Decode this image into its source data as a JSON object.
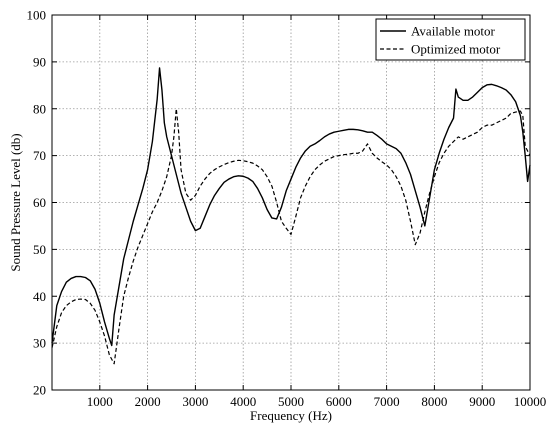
{
  "chart_data": {
    "type": "line",
    "title": "",
    "xlabel": "Frequency (Hz)",
    "ylabel": "Sound Pressure Level (db)",
    "xlim": [
      0,
      10000
    ],
    "ylim": [
      20,
      100
    ],
    "xticks": [
      1000,
      2000,
      3000,
      4000,
      5000,
      6000,
      7000,
      8000,
      9000,
      10000
    ],
    "yticks": [
      20,
      30,
      40,
      50,
      60,
      70,
      80,
      90,
      100
    ],
    "grid": true,
    "legend_position": "top-right",
    "series": [
      {
        "name": "Available motor",
        "style": "solid",
        "color": "#000000",
        "points": [
          [
            0,
            30
          ],
          [
            100,
            38
          ],
          [
            200,
            41
          ],
          [
            300,
            43
          ],
          [
            400,
            43.8
          ],
          [
            500,
            44.2
          ],
          [
            600,
            44.2
          ],
          [
            700,
            44
          ],
          [
            800,
            43.3
          ],
          [
            900,
            41.5
          ],
          [
            1000,
            38.5
          ],
          [
            1100,
            34.5
          ],
          [
            1200,
            31
          ],
          [
            1250,
            29.5
          ],
          [
            1300,
            36
          ],
          [
            1400,
            42
          ],
          [
            1500,
            48
          ],
          [
            1600,
            52
          ],
          [
            1700,
            56
          ],
          [
            1800,
            59.5
          ],
          [
            1900,
            63
          ],
          [
            2000,
            67
          ],
          [
            2100,
            73
          ],
          [
            2200,
            82
          ],
          [
            2250,
            88.7
          ],
          [
            2300,
            84
          ],
          [
            2350,
            77
          ],
          [
            2400,
            74
          ],
          [
            2500,
            70
          ],
          [
            2600,
            66
          ],
          [
            2700,
            62
          ],
          [
            2800,
            59
          ],
          [
            2900,
            56
          ],
          [
            3000,
            54
          ],
          [
            3100,
            54.5
          ],
          [
            3200,
            57
          ],
          [
            3300,
            59.5
          ],
          [
            3400,
            61.5
          ],
          [
            3500,
            63
          ],
          [
            3600,
            64.3
          ],
          [
            3700,
            65
          ],
          [
            3800,
            65.5
          ],
          [
            3900,
            65.7
          ],
          [
            4000,
            65.6
          ],
          [
            4100,
            65.2
          ],
          [
            4200,
            64.5
          ],
          [
            4300,
            63
          ],
          [
            4400,
            61
          ],
          [
            4500,
            58.5
          ],
          [
            4600,
            56.7
          ],
          [
            4700,
            56.5
          ],
          [
            4800,
            59
          ],
          [
            4900,
            62.5
          ],
          [
            5000,
            65
          ],
          [
            5100,
            67.5
          ],
          [
            5200,
            69.5
          ],
          [
            5300,
            71
          ],
          [
            5400,
            72
          ],
          [
            5500,
            72.5
          ],
          [
            5600,
            73.2
          ],
          [
            5700,
            74
          ],
          [
            5800,
            74.6
          ],
          [
            5900,
            75
          ],
          [
            6000,
            75.2
          ],
          [
            6100,
            75.4
          ],
          [
            6200,
            75.6
          ],
          [
            6300,
            75.6
          ],
          [
            6400,
            75.5
          ],
          [
            6500,
            75.3
          ],
          [
            6600,
            75
          ],
          [
            6700,
            75
          ],
          [
            6800,
            74.3
          ],
          [
            6900,
            73.5
          ],
          [
            7000,
            72.5
          ],
          [
            7100,
            72
          ],
          [
            7200,
            71.5
          ],
          [
            7300,
            70.5
          ],
          [
            7400,
            68.5
          ],
          [
            7500,
            66
          ],
          [
            7600,
            62.5
          ],
          [
            7700,
            59
          ],
          [
            7800,
            55
          ],
          [
            7900,
            61
          ],
          [
            8000,
            67
          ],
          [
            8100,
            70.5
          ],
          [
            8200,
            73.5
          ],
          [
            8300,
            76
          ],
          [
            8400,
            78
          ],
          [
            8450,
            84.2
          ],
          [
            8500,
            82.5
          ],
          [
            8600,
            81.8
          ],
          [
            8700,
            81.8
          ],
          [
            8800,
            82.5
          ],
          [
            8900,
            83.5
          ],
          [
            9000,
            84.5
          ],
          [
            9100,
            85.1
          ],
          [
            9200,
            85.2
          ],
          [
            9300,
            84.9
          ],
          [
            9400,
            84.5
          ],
          [
            9500,
            84
          ],
          [
            9600,
            83
          ],
          [
            9700,
            81.5
          ],
          [
            9800,
            78.5
          ],
          [
            9850,
            75
          ],
          [
            9900,
            70
          ],
          [
            9950,
            64.5
          ],
          [
            10000,
            68
          ]
        ]
      },
      {
        "name": "Optimized motor",
        "style": "dashed",
        "color": "#000000",
        "points": [
          [
            0,
            29
          ],
          [
            100,
            33.5
          ],
          [
            200,
            36.5
          ],
          [
            300,
            38
          ],
          [
            400,
            38.8
          ],
          [
            500,
            39.3
          ],
          [
            600,
            39.4
          ],
          [
            700,
            39.3
          ],
          [
            800,
            38.5
          ],
          [
            900,
            37
          ],
          [
            1000,
            34.5
          ],
          [
            1100,
            31.5
          ],
          [
            1200,
            27.5
          ],
          [
            1300,
            25.6
          ],
          [
            1400,
            33
          ],
          [
            1500,
            40
          ],
          [
            1600,
            44
          ],
          [
            1700,
            47.5
          ],
          [
            1800,
            50.5
          ],
          [
            1900,
            53
          ],
          [
            2000,
            55.5
          ],
          [
            2100,
            58
          ],
          [
            2200,
            60
          ],
          [
            2300,
            62.5
          ],
          [
            2400,
            65.5
          ],
          [
            2500,
            70
          ],
          [
            2550,
            74
          ],
          [
            2600,
            80
          ],
          [
            2650,
            75
          ],
          [
            2700,
            67
          ],
          [
            2800,
            62
          ],
          [
            2900,
            60.5
          ],
          [
            3000,
            61.5
          ],
          [
            3100,
            63.5
          ],
          [
            3200,
            65
          ],
          [
            3300,
            66.2
          ],
          [
            3400,
            67
          ],
          [
            3500,
            67.6
          ],
          [
            3600,
            68.1
          ],
          [
            3700,
            68.5
          ],
          [
            3800,
            68.8
          ],
          [
            3900,
            69
          ],
          [
            4000,
            68.9
          ],
          [
            4100,
            68.7
          ],
          [
            4200,
            68.4
          ],
          [
            4300,
            67.8
          ],
          [
            4400,
            67
          ],
          [
            4500,
            65.5
          ],
          [
            4600,
            63.5
          ],
          [
            4700,
            60
          ],
          [
            4800,
            56
          ],
          [
            4900,
            54.5
          ],
          [
            5000,
            53.2
          ],
          [
            5100,
            57
          ],
          [
            5200,
            61
          ],
          [
            5300,
            63.5
          ],
          [
            5400,
            65.5
          ],
          [
            5500,
            67
          ],
          [
            5600,
            68
          ],
          [
            5700,
            68.8
          ],
          [
            5800,
            69.3
          ],
          [
            5900,
            69.8
          ],
          [
            6000,
            70
          ],
          [
            6100,
            70.2
          ],
          [
            6200,
            70.3
          ],
          [
            6300,
            70.5
          ],
          [
            6400,
            70.5
          ],
          [
            6500,
            71
          ],
          [
            6600,
            72.5
          ],
          [
            6700,
            70.5
          ],
          [
            6800,
            69.5
          ],
          [
            6900,
            68.7
          ],
          [
            7000,
            68
          ],
          [
            7100,
            67
          ],
          [
            7200,
            65.5
          ],
          [
            7300,
            63.5
          ],
          [
            7400,
            60.5
          ],
          [
            7500,
            56
          ],
          [
            7600,
            51
          ],
          [
            7700,
            53.5
          ],
          [
            7800,
            58
          ],
          [
            7900,
            62
          ],
          [
            8000,
            65.5
          ],
          [
            8100,
            68.5
          ],
          [
            8200,
            70.5
          ],
          [
            8300,
            72
          ],
          [
            8400,
            73
          ],
          [
            8500,
            74
          ],
          [
            8600,
            73.5
          ],
          [
            8700,
            74
          ],
          [
            8800,
            74.5
          ],
          [
            8900,
            75
          ],
          [
            9000,
            76
          ],
          [
            9100,
            76.5
          ],
          [
            9200,
            76.5
          ],
          [
            9300,
            77
          ],
          [
            9400,
            77.5
          ],
          [
            9500,
            78
          ],
          [
            9600,
            79
          ],
          [
            9700,
            79.3
          ],
          [
            9800,
            79.5
          ],
          [
            9850,
            78.5
          ],
          [
            9900,
            72
          ],
          [
            10000,
            70
          ]
        ]
      }
    ]
  }
}
